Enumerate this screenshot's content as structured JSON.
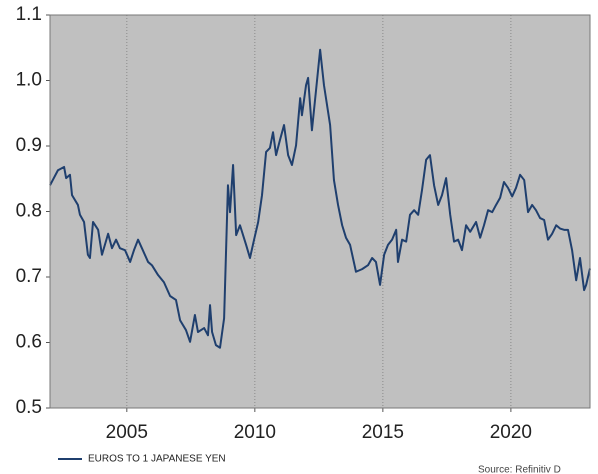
{
  "chart_data": {
    "type": "line",
    "x": [
      2002.0,
      2002.31,
      2002.55,
      2002.63,
      2002.78,
      2002.86,
      2003.09,
      2003.17,
      2003.33,
      2003.48,
      2003.56,
      2003.68,
      2003.88,
      2004.03,
      2004.27,
      2004.42,
      2004.58,
      2004.73,
      2004.93,
      2005.13,
      2005.28,
      2005.44,
      2005.59,
      2005.83,
      2005.98,
      2006.22,
      2006.45,
      2006.69,
      2006.92,
      2007.08,
      2007.31,
      2007.47,
      2007.66,
      2007.78,
      2008.02,
      2008.17,
      2008.25,
      2008.33,
      2008.48,
      2008.64,
      2008.8,
      2008.95,
      2009.03,
      2009.15,
      2009.27,
      2009.42,
      2009.66,
      2009.81,
      2009.97,
      2010.13,
      2010.28,
      2010.44,
      2010.59,
      2010.71,
      2010.83,
      2010.98,
      2011.14,
      2011.3,
      2011.45,
      2011.61,
      2011.77,
      2011.84,
      2012.0,
      2012.08,
      2012.23,
      2012.39,
      2012.55,
      2012.7,
      2012.94,
      2013.09,
      2013.25,
      2013.41,
      2013.56,
      2013.72,
      2013.95,
      2014.19,
      2014.42,
      2014.58,
      2014.73,
      2014.89,
      2015.05,
      2015.2,
      2015.36,
      2015.52,
      2015.59,
      2015.75,
      2015.91,
      2016.06,
      2016.22,
      2016.38,
      2016.53,
      2016.69,
      2016.84,
      2017.0,
      2017.16,
      2017.31,
      2017.47,
      2017.63,
      2017.78,
      2017.94,
      2018.09,
      2018.25,
      2018.41,
      2018.64,
      2018.8,
      2018.95,
      2019.11,
      2019.27,
      2019.42,
      2019.58,
      2019.73,
      2019.89,
      2020.05,
      2020.2,
      2020.36,
      2020.52,
      2020.67,
      2020.83,
      2020.98,
      2021.14,
      2021.3,
      2021.45,
      2021.61,
      2021.77,
      2021.92,
      2022.08,
      2022.23,
      2022.39,
      2022.55,
      2022.7,
      2022.86,
      2022.94,
      2023.09
    ],
    "series": [
      {
        "name": "EUROS TO 1 JAPANESE YEN",
        "color": "#1f3f6e",
        "values": [
          0.84,
          0.863,
          0.868,
          0.851,
          0.856,
          0.825,
          0.81,
          0.795,
          0.784,
          0.734,
          0.729,
          0.784,
          0.772,
          0.734,
          0.766,
          0.744,
          0.757,
          0.744,
          0.741,
          0.723,
          0.741,
          0.757,
          0.744,
          0.723,
          0.718,
          0.703,
          0.692,
          0.671,
          0.665,
          0.634,
          0.619,
          0.601,
          0.642,
          0.616,
          0.622,
          0.611,
          0.657,
          0.616,
          0.596,
          0.592,
          0.637,
          0.84,
          0.799,
          0.871,
          0.764,
          0.779,
          0.749,
          0.729,
          0.757,
          0.784,
          0.825,
          0.891,
          0.897,
          0.921,
          0.886,
          0.909,
          0.932,
          0.886,
          0.871,
          0.901,
          0.973,
          0.947,
          0.993,
          1.004,
          0.924,
          0.985,
          1.047,
          0.993,
          0.932,
          0.848,
          0.81,
          0.779,
          0.76,
          0.749,
          0.708,
          0.712,
          0.718,
          0.729,
          0.723,
          0.688,
          0.734,
          0.749,
          0.757,
          0.772,
          0.723,
          0.757,
          0.754,
          0.795,
          0.802,
          0.795,
          0.833,
          0.879,
          0.886,
          0.84,
          0.81,
          0.825,
          0.851,
          0.795,
          0.754,
          0.757,
          0.741,
          0.779,
          0.769,
          0.784,
          0.76,
          0.779,
          0.802,
          0.799,
          0.81,
          0.821,
          0.845,
          0.836,
          0.823,
          0.836,
          0.856,
          0.848,
          0.799,
          0.81,
          0.802,
          0.79,
          0.787,
          0.757,
          0.766,
          0.779,
          0.774,
          0.772,
          0.772,
          0.741,
          0.695,
          0.729,
          0.68,
          0.688,
          0.713
        ]
      }
    ],
    "xlim": [
      2002,
      2023.09
    ],
    "xticks": [
      2005,
      2010,
      2015,
      2020
    ],
    "ylim": [
      0.5,
      1.1
    ],
    "yticks": [
      0.5,
      0.6,
      0.7,
      0.8,
      0.9,
      {
        "value": 1,
        "label": "1.0"
      },
      1.1
    ],
    "grid": "x",
    "background": "#c0c0c0",
    "source": "Source: Refinitiv D"
  }
}
